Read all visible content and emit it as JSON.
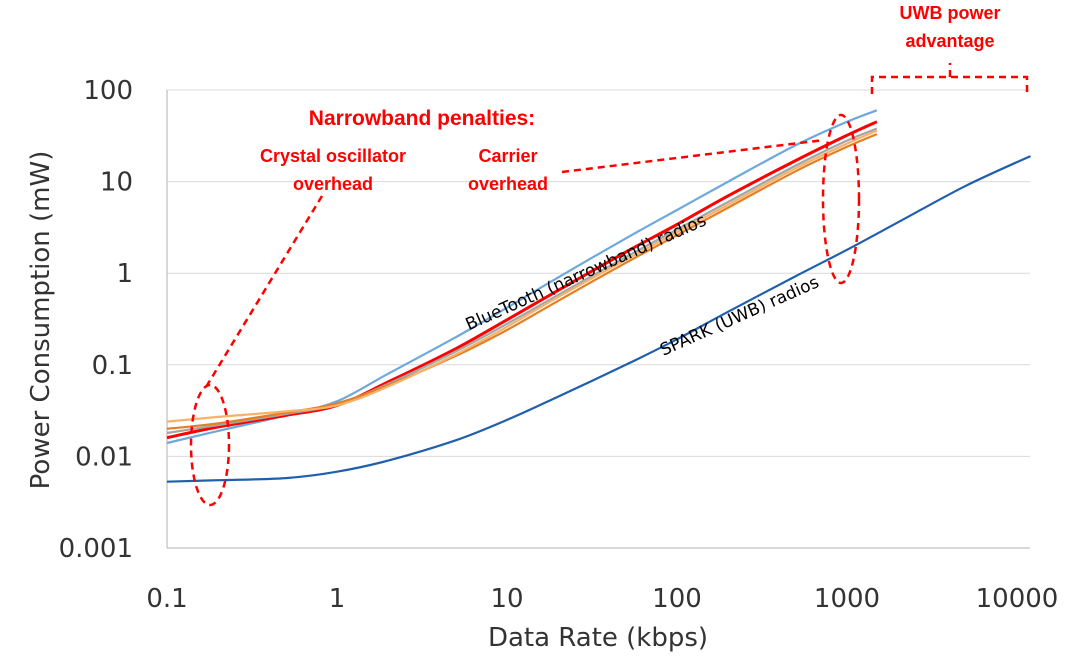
{
  "chart_data": {
    "type": "line",
    "title": "",
    "xlabel": "Data Rate (kbps)",
    "ylabel": "Power Consumption (mW)",
    "x_scale": "log",
    "y_scale": "log",
    "xlim": [
      0.1,
      12000
    ],
    "ylim": [
      0.001,
      100
    ],
    "x_ticks": [
      "0.1",
      "1",
      "10",
      "100",
      "1000",
      "10000"
    ],
    "y_ticks": [
      "0.001",
      "0.01",
      "0.1",
      "1",
      "10",
      "100"
    ],
    "grid": "horizontal",
    "series": [
      {
        "label": "narrowband-light-blue",
        "color": "#6fa8dc",
        "x": [
          0.1,
          0.2,
          0.5,
          1,
          2,
          5,
          10,
          20,
          50,
          100,
          200,
          500,
          1000,
          1500
        ],
        "y": [
          0.014,
          0.019,
          0.028,
          0.04,
          0.08,
          0.2,
          0.42,
          0.9,
          2.4,
          4.9,
          10,
          25,
          45,
          60
        ]
      },
      {
        "label": "narrowband-red",
        "color": "#ff0000",
        "x": [
          0.1,
          0.2,
          0.5,
          1,
          2,
          5,
          10,
          20,
          50,
          100,
          200,
          500,
          1000,
          1500
        ],
        "y": [
          0.016,
          0.021,
          0.028,
          0.036,
          0.065,
          0.15,
          0.31,
          0.65,
          1.7,
          3.4,
          7,
          17,
          32,
          45
        ]
      },
      {
        "label": "narrowband-gray",
        "color": "#a5a5a5",
        "x": [
          0.1,
          0.2,
          0.5,
          1,
          2,
          5,
          10,
          20,
          50,
          100,
          200,
          500,
          1000,
          1500
        ],
        "y": [
          0.018,
          0.022,
          0.029,
          0.037,
          0.062,
          0.14,
          0.28,
          0.58,
          1.5,
          3,
          6,
          15,
          28,
          38
        ]
      },
      {
        "label": "narrowband-dark-orange",
        "color": "#e67e22",
        "x": [
          0.1,
          0.2,
          0.5,
          1,
          2,
          5,
          10,
          20,
          50,
          100,
          200,
          500,
          1000,
          1500
        ],
        "y": [
          0.02,
          0.023,
          0.03,
          0.038,
          0.06,
          0.125,
          0.24,
          0.5,
          1.3,
          2.6,
          5.2,
          13,
          24,
          33
        ]
      },
      {
        "label": "narrowband-light-orange",
        "color": "#f6b26b",
        "x": [
          0.1,
          0.2,
          0.5,
          1,
          2,
          5,
          10,
          20,
          50,
          100,
          200,
          500,
          1000,
          1500
        ],
        "y": [
          0.024,
          0.027,
          0.031,
          0.036,
          0.058,
          0.13,
          0.26,
          0.55,
          1.4,
          2.8,
          5.6,
          14,
          26,
          36
        ]
      },
      {
        "label": "uwb-blue",
        "color": "#1f5fad",
        "x": [
          0.1,
          0.2,
          0.5,
          1,
          2,
          5,
          10,
          20,
          50,
          100,
          200,
          500,
          1000,
          2000,
          5000,
          12000
        ],
        "y": [
          0.0053,
          0.0055,
          0.0058,
          0.0068,
          0.009,
          0.015,
          0.025,
          0.045,
          0.1,
          0.19,
          0.38,
          0.93,
          1.8,
          3.6,
          9,
          19
        ]
      }
    ],
    "series_labels": [
      {
        "text": "BlueTooth (narrowband) radios",
        "x": 30,
        "y": 0.9
      },
      {
        "text": "SPARK (UWB) radios",
        "x": 240,
        "y": 0.3
      }
    ],
    "annotations": {
      "penalties_title": "Narrowband penalties:",
      "crystal_line1": "Crystal oscillator",
      "crystal_line2": "overhead",
      "carrier_line1": "Carrier",
      "carrier_line2": "overhead",
      "uwb_line1": "UWB power",
      "uwb_line2": "advantage"
    }
  }
}
